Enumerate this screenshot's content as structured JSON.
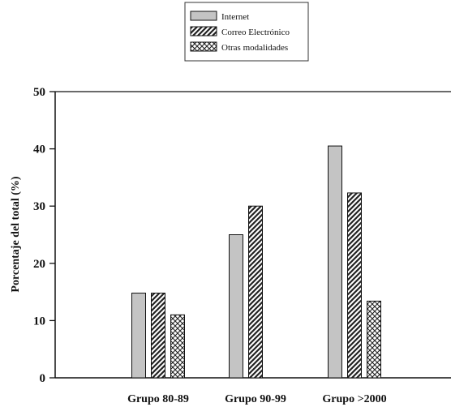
{
  "chart_data": {
    "type": "bar",
    "title": "",
    "xlabel": "",
    "ylabel": "Porcentaje del total (%)",
    "categories": [
      "Grupo 80-89",
      "Grupo 90-99",
      "Grupo >2000"
    ],
    "series": [
      {
        "name": "Internet",
        "values": [
          14.8,
          25.0,
          40.5
        ],
        "color": "#c4c4c4",
        "pattern": "solid"
      },
      {
        "name": "Correo Electrónico",
        "values": [
          14.8,
          30.0,
          32.3
        ],
        "color": "#3a3a3a",
        "pattern": "diagonal-hatch"
      },
      {
        "name": "Otras modalidades",
        "values": [
          11.0,
          null,
          13.4
        ],
        "color": "#3a3a3a",
        "pattern": "crosshatch"
      }
    ],
    "ylim": [
      0,
      50
    ],
    "yticks": [
      0,
      10,
      20,
      30,
      40,
      50
    ],
    "grid": false,
    "legend": "top-center"
  }
}
